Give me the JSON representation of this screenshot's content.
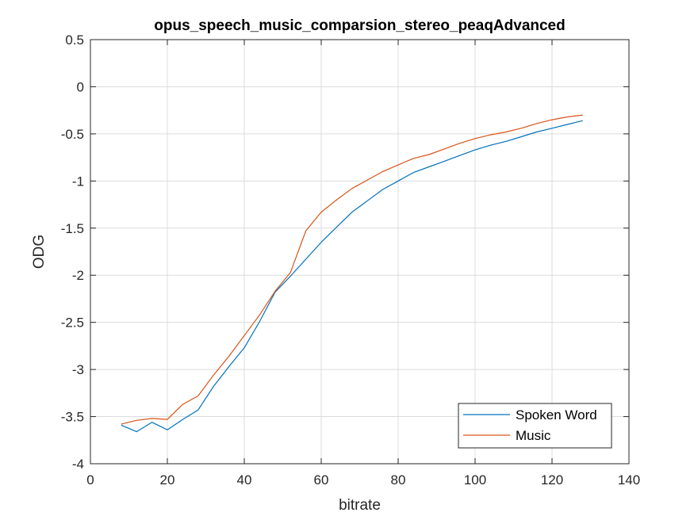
{
  "chart_data": {
    "type": "line",
    "title": "opus_speech_music_comparsion_stereo_peaqAdvanced",
    "xlabel": "bitrate",
    "ylabel": "ODG",
    "xlim": [
      0,
      140
    ],
    "ylim": [
      -4,
      0.5
    ],
    "xticks": [
      0,
      20,
      40,
      60,
      80,
      100,
      120,
      140
    ],
    "yticks": [
      -4,
      -3.5,
      -3,
      -2.5,
      -2,
      -1.5,
      -1,
      -0.5,
      0,
      0.5
    ],
    "xtick_labels": [
      "0",
      "20",
      "40",
      "60",
      "80",
      "100",
      "120",
      "140"
    ],
    "ytick_labels": [
      "-4",
      "-3.5",
      "-3",
      "-2.5",
      "-2",
      "-1.5",
      "-1",
      "-0.5",
      "0",
      "0.5"
    ],
    "grid": true,
    "legend": "bottom-right",
    "series": [
      {
        "name": "Spoken Word",
        "color": "#0072BD",
        "x": [
          8,
          12,
          16,
          20,
          24,
          28,
          32,
          36,
          40,
          44,
          48,
          52,
          56,
          60,
          64,
          68,
          72,
          76,
          80,
          84,
          88,
          92,
          96,
          100,
          104,
          108,
          112,
          116,
          120,
          124,
          128
        ],
        "y": [
          -3.59,
          -3.66,
          -3.56,
          -3.64,
          -3.53,
          -3.43,
          -3.18,
          -2.97,
          -2.77,
          -2.49,
          -2.18,
          -2.01,
          -1.83,
          -1.65,
          -1.49,
          -1.33,
          -1.21,
          -1.09,
          -1.0,
          -0.91,
          -0.85,
          -0.79,
          -0.73,
          -0.67,
          -0.62,
          -0.58,
          -0.53,
          -0.48,
          -0.44,
          -0.4,
          -0.36
        ]
      },
      {
        "name": "Music",
        "color": "#D95319",
        "x": [
          8,
          12,
          16,
          20,
          24,
          28,
          32,
          36,
          40,
          44,
          48,
          52,
          56,
          60,
          64,
          68,
          72,
          76,
          80,
          84,
          88,
          92,
          96,
          100,
          104,
          108,
          112,
          116,
          120,
          124,
          128
        ],
        "y": [
          -3.58,
          -3.54,
          -3.52,
          -3.53,
          -3.37,
          -3.28,
          -3.06,
          -2.86,
          -2.64,
          -2.42,
          -2.17,
          -1.97,
          -1.53,
          -1.33,
          -1.2,
          -1.08,
          -0.99,
          -0.9,
          -0.83,
          -0.76,
          -0.72,
          -0.66,
          -0.6,
          -0.55,
          -0.51,
          -0.48,
          -0.44,
          -0.39,
          -0.35,
          -0.32,
          -0.3
        ]
      }
    ]
  }
}
